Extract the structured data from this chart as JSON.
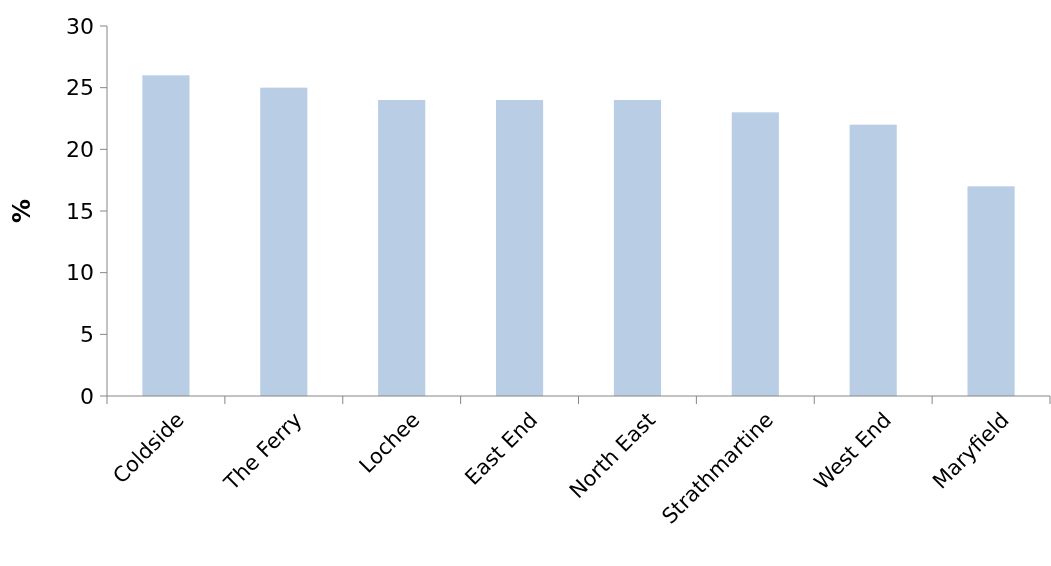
{
  "chart_data": {
    "type": "bar",
    "ylabel": "%",
    "categories": [
      "Coldside",
      "The Ferry",
      "Lochee",
      "East End",
      "North East",
      "Strathmartine",
      "West End",
      "Maryfield"
    ],
    "values": [
      26,
      25,
      24,
      24,
      24,
      23,
      22,
      17
    ],
    "color": "#b9cde5",
    "ylim": [
      0,
      30
    ],
    "yticks": [
      0,
      5,
      10,
      15,
      20,
      25,
      30
    ],
    "grid": false
  }
}
